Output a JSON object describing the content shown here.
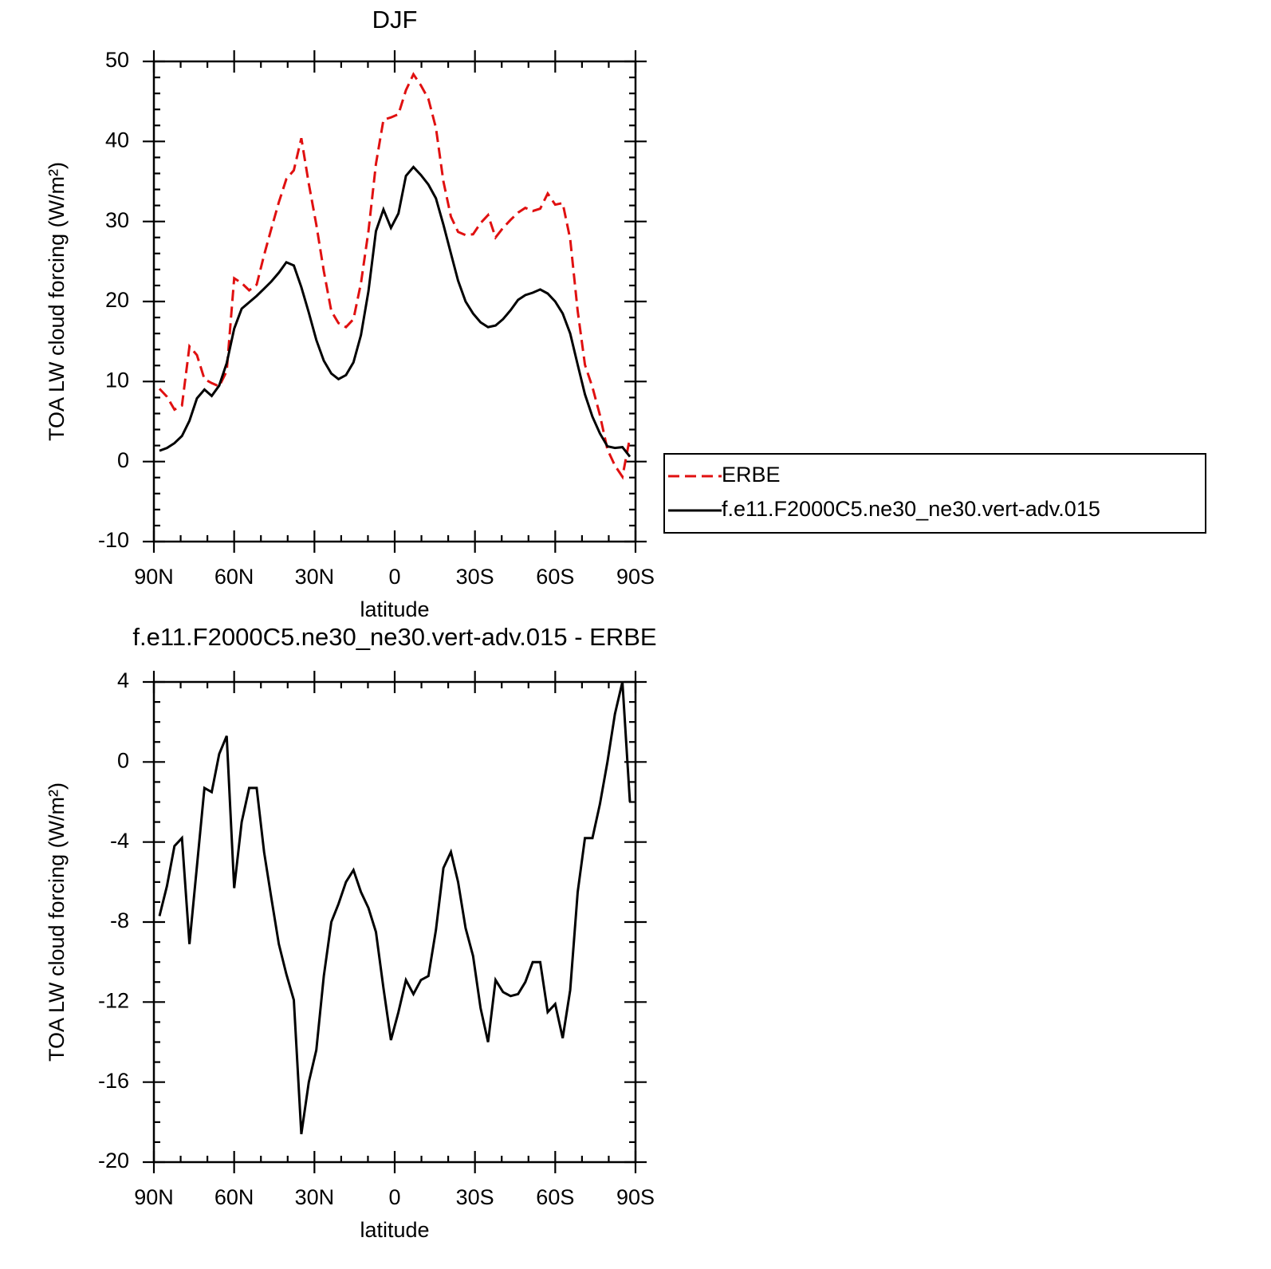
{
  "chart_data": [
    {
      "type": "line",
      "title": "DJF",
      "xlabel": "latitude",
      "ylabel": "TOA LW cloud forcing (W/m²)",
      "x": [
        87.9,
        85.1,
        82.3,
        79.5,
        76.7,
        73.9,
        71.1,
        68.4,
        65.6,
        62.8,
        60.0,
        57.2,
        54.4,
        51.6,
        48.8,
        46.1,
        43.3,
        40.5,
        37.7,
        34.9,
        32.1,
        29.3,
        26.5,
        23.7,
        21.0,
        18.2,
        15.4,
        12.6,
        9.8,
        7.0,
        4.2,
        1.4,
        -1.4,
        -4.2,
        -7.0,
        -9.8,
        -12.6,
        -15.4,
        -18.2,
        -21.0,
        -23.7,
        -26.5,
        -29.3,
        -32.1,
        -34.9,
        -37.7,
        -40.5,
        -43.3,
        -46.1,
        -48.8,
        -51.6,
        -54.4,
        -57.2,
        -60.0,
        -62.8,
        -65.6,
        -68.4,
        -71.1,
        -73.9,
        -76.7,
        -79.5,
        -82.3,
        -85.1,
        -87.9
      ],
      "xlim": [
        90,
        -90
      ],
      "xticks": [
        {
          "value": 90,
          "label": "90N"
        },
        {
          "value": 60,
          "label": "60N"
        },
        {
          "value": 30,
          "label": "30N"
        },
        0,
        {
          "value": -30,
          "label": "30S"
        },
        {
          "value": -60,
          "label": "60S"
        },
        {
          "value": -90,
          "label": "90S"
        }
      ],
      "ylim": [
        -10,
        50
      ],
      "yticks": [
        -10,
        0,
        10,
        20,
        30,
        40,
        50
      ],
      "legend": "right",
      "series": [
        {
          "name": "ERBE",
          "color": "#e01010",
          "line_style": "dashed",
          "values": [
            9.1,
            8.1,
            6.5,
            7.0,
            14.4,
            13.3,
            10.3,
            9.8,
            9.4,
            11.3,
            22.9,
            22.3,
            21.4,
            22.1,
            25.8,
            29.1,
            32.4,
            35.3,
            36.4,
            40.4,
            34.7,
            29.6,
            23.8,
            18.8,
            17.3,
            16.8,
            17.8,
            22.3,
            28.8,
            37.2,
            42.7,
            43.0,
            43.4,
            46.4,
            48.4,
            47.0,
            45.3,
            41.7,
            35.0,
            30.6,
            28.7,
            28.3,
            28.4,
            29.8,
            30.8,
            28.0,
            29.2,
            30.2,
            31.1,
            31.7,
            31.3,
            31.6,
            33.5,
            32.1,
            32.3,
            27.8,
            18.8,
            12.1,
            9.3,
            5.8,
            1.5,
            -0.5,
            -1.9,
            3.0
          ]
        },
        {
          "name": "f.e11.F2000C5.ne30_ne30.vert-adv.015",
          "color": "#000000",
          "line_style": "solid",
          "values": [
            1.35,
            1.7,
            2.3,
            3.2,
            5.1,
            7.9,
            9.0,
            8.2,
            9.5,
            12.3,
            16.6,
            19.1,
            19.9,
            20.7,
            21.6,
            22.5,
            23.6,
            24.9,
            24.5,
            21.8,
            18.6,
            15.2,
            12.6,
            11.0,
            10.3,
            10.8,
            12.4,
            15.8,
            21.3,
            28.8,
            31.5,
            29.2,
            31.0,
            35.7,
            36.8,
            35.8,
            34.6,
            32.9,
            29.6,
            26.0,
            22.6,
            20.0,
            18.5,
            17.4,
            16.8,
            17.0,
            17.8,
            18.9,
            20.2,
            20.8,
            21.1,
            21.5,
            21.0,
            20.0,
            18.5,
            16.0,
            12.1,
            8.4,
            5.6,
            3.5,
            1.9,
            1.7,
            1.8,
            0.6
          ]
        }
      ]
    },
    {
      "type": "line",
      "title": "f.e11.F2000C5.ne30_ne30.vert-adv.015 - ERBE",
      "xlabel": "latitude",
      "ylabel": "TOA LW cloud forcing (W/m²)",
      "x": [
        87.9,
        85.1,
        82.3,
        79.5,
        76.7,
        73.9,
        71.1,
        68.4,
        65.6,
        62.8,
        60.0,
        57.2,
        54.4,
        51.6,
        48.8,
        46.1,
        43.3,
        40.5,
        37.7,
        34.9,
        32.1,
        29.3,
        26.5,
        23.7,
        21.0,
        18.2,
        15.4,
        12.6,
        9.8,
        7.0,
        4.2,
        1.4,
        -1.4,
        -4.2,
        -7.0,
        -9.8,
        -12.6,
        -15.4,
        -18.2,
        -21.0,
        -23.7,
        -26.5,
        -29.3,
        -32.1,
        -34.9,
        -37.7,
        -40.5,
        -43.3,
        -46.1,
        -48.8,
        -51.6,
        -54.4,
        -57.2,
        -60.0,
        -62.8,
        -65.6,
        -68.4,
        -71.1,
        -73.9,
        -76.7,
        -79.5,
        -82.3,
        -85.1,
        -87.9
      ],
      "xlim": [
        90,
        -90
      ],
      "xticks": [
        {
          "value": 90,
          "label": "90N"
        },
        {
          "value": 60,
          "label": "60N"
        },
        {
          "value": 30,
          "label": "30N"
        },
        0,
        {
          "value": -30,
          "label": "30S"
        },
        {
          "value": -60,
          "label": "60S"
        },
        {
          "value": -90,
          "label": "90S"
        }
      ],
      "ylim": [
        -20,
        4
      ],
      "yticks": [
        -20,
        -16,
        -12,
        -8,
        -4,
        0,
        4
      ],
      "series": [
        {
          "color": "#000000",
          "line_style": "solid",
          "values": [
            -7.7,
            -6.2,
            -4.2,
            -3.8,
            -9.1,
            -5.2,
            -1.3,
            -1.5,
            0.4,
            1.3,
            -6.3,
            -3,
            -1.3,
            -1.3,
            -4.5,
            -6.8,
            -9.1,
            -10.6,
            -11.9,
            -18.6,
            -16,
            -14.4,
            -10.7,
            -8,
            -7.1,
            -6,
            -5.4,
            -6.5,
            -7.3,
            -8.5,
            -11.3,
            -13.9,
            -12.5,
            -10.9,
            -11.6,
            -10.9,
            -10.7,
            -8.4,
            -5.3,
            -4.5,
            -6,
            -8.3,
            -9.7,
            -12.3,
            -14,
            -10.9,
            -11.5,
            -11.7,
            -11.6,
            -11,
            -10,
            -10,
            -12.5,
            -12.1,
            -13.8,
            -11.4,
            -6.5,
            -3.8,
            -3.8,
            -2.1,
            0,
            2.4,
            4,
            -2
          ]
        }
      ]
    }
  ]
}
